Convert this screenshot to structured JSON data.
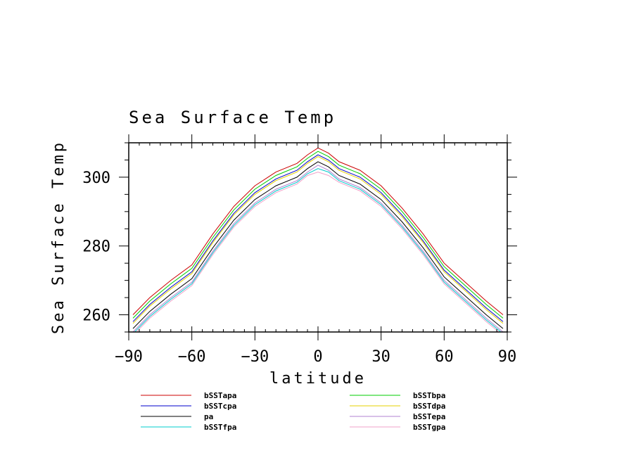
{
  "chart_data": {
    "type": "line",
    "title": "Sea Surface Temp",
    "xlabel": "latitude",
    "ylabel": "Sea Surface Temp",
    "xlim": [
      -90,
      90
    ],
    "ylim": [
      255,
      310
    ],
    "xticks": [
      -90,
      -60,
      -30,
      0,
      30,
      60,
      90
    ],
    "xtick_labels": [
      "−90",
      "−60",
      "−30",
      "0",
      "30",
      "60",
      "90"
    ],
    "yticks": [
      260,
      280,
      300
    ],
    "ytick_labels": [
      "260",
      "280",
      "300"
    ],
    "x": [
      -88,
      -80,
      -70,
      -60,
      -50,
      -40,
      -30,
      -20,
      -10,
      -5,
      0,
      5,
      10,
      20,
      30,
      40,
      50,
      60,
      70,
      80,
      88
    ],
    "series": [
      {
        "name": "bSSTapa",
        "color": "#cc0000",
        "values": [
          260.0,
          265.0,
          270.0,
          274.5,
          283.5,
          291.5,
          297.5,
          301.5,
          304.0,
          306.5,
          308.5,
          307.0,
          304.5,
          302.0,
          297.5,
          291.0,
          283.5,
          275.0,
          269.5,
          264.0,
          260.0
        ]
      },
      {
        "name": "bSSTbpa",
        "color": "#00cc00",
        "values": [
          259.0,
          264.0,
          269.0,
          273.5,
          282.5,
          290.5,
          296.5,
          300.5,
          303.0,
          305.5,
          307.5,
          306.0,
          303.5,
          301.0,
          296.5,
          290.0,
          282.5,
          274.0,
          268.5,
          263.0,
          259.0
        ]
      },
      {
        "name": "bSSTcpa",
        "color": "#0000cc",
        "values": [
          258.0,
          263.0,
          268.0,
          272.5,
          281.5,
          289.5,
          295.5,
          299.5,
          302.0,
          304.5,
          306.5,
          305.0,
          302.5,
          300.0,
          295.5,
          289.0,
          281.5,
          273.0,
          267.5,
          262.0,
          258.0
        ]
      },
      {
        "name": "bSSTdpa",
        "color": "#e6d200",
        "values": [
          257.5,
          262.5,
          267.5,
          272.0,
          281.0,
          289.0,
          295.0,
          299.0,
          301.5,
          304.0,
          306.0,
          304.5,
          302.0,
          299.5,
          295.0,
          288.5,
          281.0,
          272.5,
          267.0,
          261.5,
          257.5
        ]
      },
      {
        "name": "pa",
        "color": "#000000",
        "values": [
          256.0,
          261.0,
          266.0,
          270.5,
          279.5,
          287.5,
          293.5,
          297.5,
          300.0,
          302.5,
          304.5,
          303.0,
          300.5,
          298.0,
          293.5,
          287.0,
          279.5,
          271.0,
          265.5,
          260.0,
          256.0
        ]
      },
      {
        "name": "bSSTepa",
        "color": "#b080d0",
        "values": [
          255.0,
          260.0,
          265.0,
          269.5,
          278.5,
          286.5,
          292.5,
          296.5,
          299.0,
          301.5,
          303.5,
          302.0,
          299.5,
          297.0,
          292.5,
          286.0,
          278.5,
          270.0,
          264.5,
          259.0,
          255.0
        ]
      },
      {
        "name": "bSSTfpa",
        "color": "#00cccc",
        "values": [
          254.5,
          259.5,
          264.5,
          269.0,
          278.0,
          286.0,
          292.0,
          296.0,
          298.5,
          301.0,
          302.5,
          301.5,
          299.0,
          296.5,
          292.0,
          285.5,
          278.0,
          269.5,
          264.0,
          258.5,
          254.5
        ]
      },
      {
        "name": "bSSTgpa",
        "color": "#f0a0c8",
        "values": [
          254.0,
          259.0,
          264.0,
          268.5,
          277.5,
          285.5,
          291.5,
          295.5,
          298.0,
          300.5,
          301.5,
          300.5,
          298.5,
          296.0,
          291.5,
          285.0,
          277.5,
          269.0,
          263.5,
          258.0,
          254.0
        ]
      }
    ],
    "legend": {
      "placement": "bottom",
      "left_column": [
        "bSSTapa",
        "bSSTcpa",
        "pa",
        "bSSTfpa"
      ],
      "right_column": [
        "bSSTbpa",
        "bSSTdpa",
        "bSSTepa",
        "bSSTgpa"
      ]
    }
  }
}
